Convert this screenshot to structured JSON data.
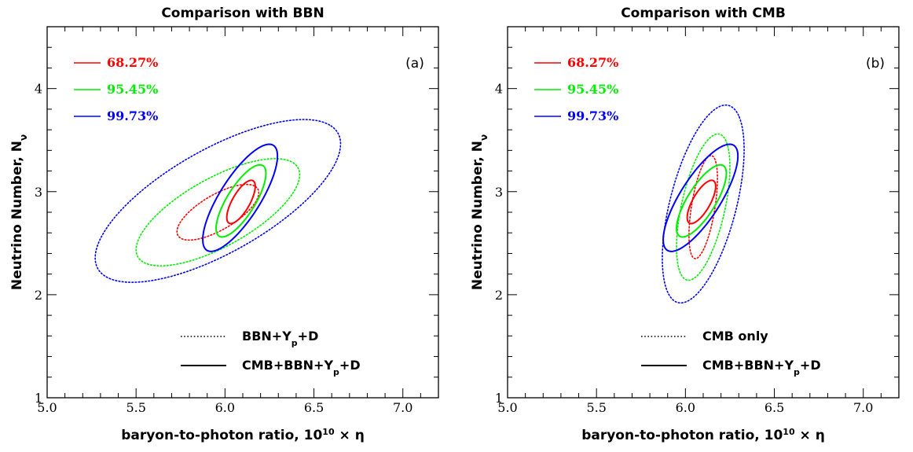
{
  "chart_data": [
    {
      "type": "contour",
      "title": "Comparison with BBN",
      "panel_tag": "(a)",
      "xlabel": "baryon-to-photon ratio, 10",
      "xlabel_sup": "10",
      "xlabel_tail": " × η",
      "ylabel": "Neutrino Number, N",
      "ylabel_sub": "ν",
      "xlim": [
        5.0,
        7.2
      ],
      "ylim": [
        1.0,
        4.6
      ],
      "xticks": [
        "5.0",
        "5.5",
        "6.0",
        "6.5",
        "7.0"
      ],
      "yticks": [
        "1",
        "2",
        "3",
        "4"
      ],
      "confidence_legend": [
        {
          "label": "68.27%",
          "color": "#ff0000"
        },
        {
          "label": "95.45%",
          "color": "#00ee00"
        },
        {
          "label": "99.73%",
          "color": "#0000ff"
        }
      ],
      "style_legend": [
        {
          "label": "BBN+Y",
          "sub": "p",
          "tail": "+D",
          "style": "dotted"
        },
        {
          "label": "CMB+BBN+Y",
          "sub": "p",
          "tail": "+D",
          "style": "solid"
        }
      ],
      "series": [
        {
          "name": "BBN+Y_p+D",
          "level": "68.27%",
          "style": "dotted",
          "color": "#ff0000",
          "center": [
            5.96,
            2.8
          ],
          "semi_axes": [
            0.23,
            0.27
          ],
          "rho": 0.7
        },
        {
          "name": "BBN+Y_p+D",
          "level": "95.45%",
          "style": "dotted",
          "color": "#00ee00",
          "center": [
            5.96,
            2.8
          ],
          "semi_axes": [
            0.46,
            0.52
          ],
          "rho": 0.7
        },
        {
          "name": "BBN+Y_p+D",
          "level": "99.73%",
          "style": "dotted",
          "color": "#0000ff",
          "center": [
            5.96,
            2.91
          ],
          "semi_axes": [
            0.69,
            0.79
          ],
          "rho": 0.7
        },
        {
          "name": "CMB+BBN+Y_p+D",
          "level": "68.27%",
          "style": "solid",
          "color": "#ff0000",
          "center": [
            6.09,
            2.9
          ],
          "semi_axes": [
            0.08,
            0.21
          ],
          "rho": 0.72
        },
        {
          "name": "CMB+BBN+Y_p+D",
          "level": "95.45%",
          "style": "solid",
          "color": "#00ee00",
          "center": [
            6.09,
            2.91
          ],
          "semi_axes": [
            0.14,
            0.35
          ],
          "rho": 0.76
        },
        {
          "name": "CMB+BBN+Y_p+D",
          "level": "99.73%",
          "style": "solid",
          "color": "#0000ff",
          "center": [
            6.085,
            2.94
          ],
          "semi_axes": [
            0.21,
            0.52
          ],
          "rho": 0.78
        }
      ]
    },
    {
      "type": "contour",
      "title": "Comparison with CMB",
      "panel_tag": "(b)",
      "xlabel": "baryon-to-photon ratio, 10",
      "xlabel_sup": "10",
      "xlabel_tail": " × η",
      "ylabel": "Neutrino Number, N",
      "ylabel_sub": "ν",
      "xlim": [
        5.0,
        7.2
      ],
      "ylim": [
        1.0,
        4.6
      ],
      "xticks": [
        "5.0",
        "5.5",
        "6.0",
        "6.5",
        "7.0"
      ],
      "yticks": [
        "1",
        "2",
        "3",
        "4"
      ],
      "confidence_legend": [
        {
          "label": "68.27%",
          "color": "#ff0000"
        },
        {
          "label": "95.45%",
          "color": "#00ee00"
        },
        {
          "label": "99.73%",
          "color": "#0000ff"
        }
      ],
      "style_legend": [
        {
          "label": "CMB only",
          "sub": "",
          "tail": "",
          "style": "dotted"
        },
        {
          "label": "CMB+BBN+Y",
          "sub": "p",
          "tail": "+D",
          "style": "solid"
        }
      ],
      "series": [
        {
          "name": "CMB only",
          "level": "68.27%",
          "style": "dotted",
          "color": "#ff0000",
          "center": [
            6.1,
            2.85
          ],
          "semi_axes": [
            0.08,
            0.5
          ],
          "rho": 0.55
        },
        {
          "name": "CMB only",
          "level": "95.45%",
          "style": "dotted",
          "color": "#00ee00",
          "center": [
            6.1,
            2.85
          ],
          "semi_axes": [
            0.15,
            0.71
          ],
          "rho": 0.55
        },
        {
          "name": "CMB only",
          "level": "99.73%",
          "style": "dotted",
          "color": "#0000ff",
          "center": [
            6.1,
            2.88
          ],
          "semi_axes": [
            0.23,
            0.96
          ],
          "rho": 0.55
        },
        {
          "name": "CMB+BBN+Y_p+D",
          "level": "68.27%",
          "style": "solid",
          "color": "#ff0000",
          "center": [
            6.09,
            2.9
          ],
          "semi_axes": [
            0.08,
            0.21
          ],
          "rho": 0.72
        },
        {
          "name": "CMB+BBN+Y_p+D",
          "level": "95.45%",
          "style": "solid",
          "color": "#00ee00",
          "center": [
            6.09,
            2.91
          ],
          "semi_axes": [
            0.14,
            0.35
          ],
          "rho": 0.76
        },
        {
          "name": "CMB+BBN+Y_p+D",
          "level": "99.73%",
          "style": "solid",
          "color": "#0000ff",
          "center": [
            6.085,
            2.94
          ],
          "semi_axes": [
            0.21,
            0.52
          ],
          "rho": 0.78
        }
      ]
    }
  ]
}
